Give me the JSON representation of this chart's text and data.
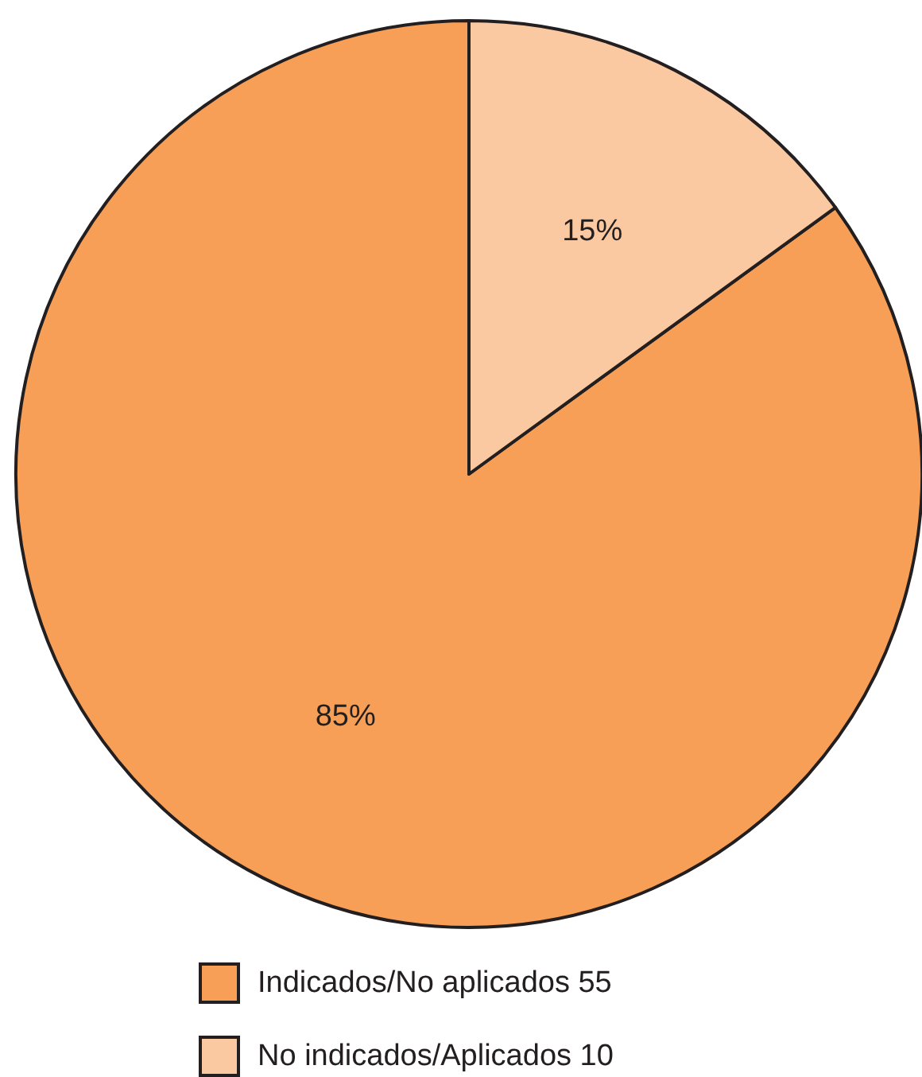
{
  "chart_data": {
    "type": "pie",
    "categories": [
      "Indicados/No aplicados 55",
      "No indicados/Aplicados 10"
    ],
    "values": [
      85,
      15
    ],
    "colors": [
      "#f79f56",
      "#fbc9a1"
    ],
    "value_labels": [
      "85%",
      "15%"
    ],
    "legend": "bottom"
  }
}
